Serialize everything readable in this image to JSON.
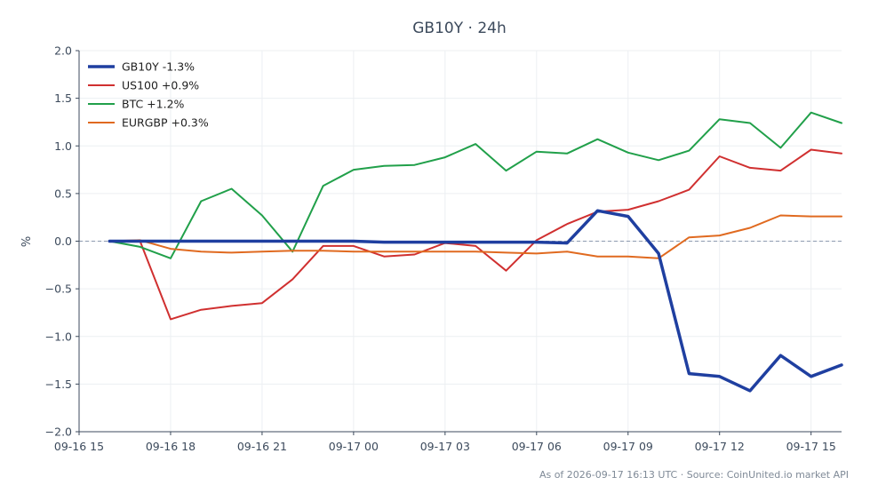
{
  "chart_data": {
    "type": "line",
    "title": "GB10Y · 24h",
    "ylabel": "%",
    "xlabel": "",
    "ylim": [
      -2.0,
      2.0
    ],
    "xlim": [
      0,
      25
    ],
    "yticks": [
      {
        "value": 2.0,
        "label": "2.0"
      },
      {
        "value": 1.5,
        "label": "1.5"
      },
      {
        "value": 1.0,
        "label": "1.0"
      },
      {
        "value": 0.5,
        "label": "0.5"
      },
      {
        "value": 0.0,
        "label": "0.0"
      },
      {
        "value": -0.5,
        "label": "−0.5"
      },
      {
        "value": -1.0,
        "label": "−1.0"
      },
      {
        "value": -1.5,
        "label": "−1.5"
      },
      {
        "value": -2.0,
        "label": "−2.0"
      }
    ],
    "xticks": [
      {
        "value": 0,
        "label": "09-16 15"
      },
      {
        "value": 3,
        "label": "09-16 18"
      },
      {
        "value": 6,
        "label": "09-16 21"
      },
      {
        "value": 9,
        "label": "09-17 00"
      },
      {
        "value": 12,
        "label": "09-17 03"
      },
      {
        "value": 15,
        "label": "09-17 06"
      },
      {
        "value": 18,
        "label": "09-17 09"
      },
      {
        "value": 21,
        "label": "09-17 12"
      },
      {
        "value": 24,
        "label": "09-17 15"
      }
    ],
    "grid": true,
    "zero_line": true,
    "legend_position": "top-left",
    "x": [
      1,
      2,
      3,
      4,
      5,
      6,
      7,
      8,
      9,
      10,
      11,
      12,
      13,
      14,
      15,
      16,
      17,
      18,
      19,
      20,
      21,
      22,
      23,
      24,
      25
    ],
    "series": [
      {
        "name": "GB10Y -1.3%",
        "color": "#1f3fa0",
        "width": 3.5,
        "values": [
          0.0,
          0.0,
          0.0,
          0.0,
          0.0,
          0.0,
          0.0,
          0.0,
          0.0,
          -0.01,
          -0.01,
          -0.01,
          -0.01,
          -0.01,
          -0.01,
          -0.02,
          0.32,
          0.26,
          -0.13,
          -1.39,
          -1.42,
          -1.57,
          -1.2,
          -1.42,
          -1.3
        ]
      },
      {
        "name": "US100 +0.9%",
        "color": "#d03030",
        "width": 2,
        "values": [
          0.0,
          0.0,
          -0.82,
          -0.72,
          -0.68,
          -0.65,
          -0.4,
          -0.05,
          -0.05,
          -0.16,
          -0.14,
          -0.02,
          -0.05,
          -0.31,
          0.01,
          0.18,
          0.31,
          0.33,
          0.42,
          0.54,
          0.89,
          0.77,
          0.74,
          0.96,
          0.92
        ]
      },
      {
        "name": "BTC +1.2%",
        "color": "#21a04a",
        "width": 2,
        "values": [
          0.0,
          -0.06,
          -0.18,
          0.42,
          0.55,
          0.27,
          -0.11,
          0.58,
          0.75,
          0.79,
          0.8,
          0.88,
          1.02,
          0.74,
          0.94,
          0.92,
          1.07,
          0.93,
          0.85,
          0.95,
          1.28,
          1.24,
          0.98,
          1.35,
          1.24
        ]
      },
      {
        "name": "EURGBP +0.3%",
        "color": "#e06a20",
        "width": 2,
        "values": [
          0.0,
          0.01,
          -0.08,
          -0.11,
          -0.12,
          -0.11,
          -0.1,
          -0.1,
          -0.11,
          -0.11,
          -0.11,
          -0.11,
          -0.11,
          -0.12,
          -0.13,
          -0.11,
          -0.16,
          -0.16,
          -0.18,
          0.04,
          0.06,
          0.14,
          0.27,
          0.26,
          0.26
        ]
      }
    ]
  },
  "footer": {
    "text": "As of 2026-09-17 16:13 UTC · Source: CoinUnited.io market API"
  }
}
